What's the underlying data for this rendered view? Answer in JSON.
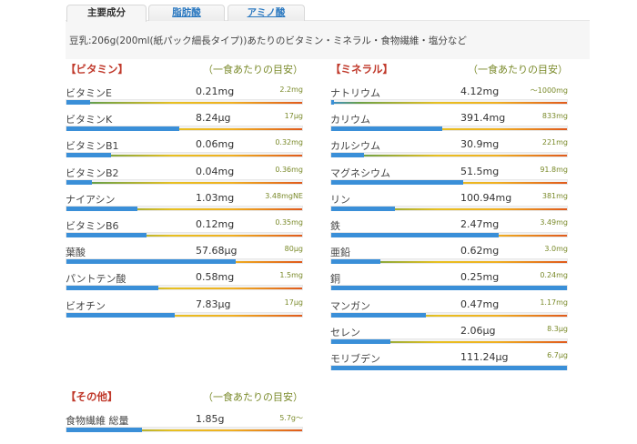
{
  "tabs": [
    {
      "label": "主要成分",
      "active": true
    },
    {
      "label": "脂肪酸",
      "active": false
    },
    {
      "label": "アミノ酸",
      "active": false
    }
  ],
  "subtitle": "豆乳:206g(200ml(紙パック細長タイプ))あたりのビタミン・ミネラル・食物繊維・塩分など",
  "colors": {
    "accent_title": "#c0392b",
    "ref_text": "#7a8a2a",
    "bar_fill": "#3a8fd8",
    "tab_link": "#2a78c0"
  },
  "sections": {
    "vitamins": {
      "title": "【ビタミン】",
      "note": "（一食あたりの目安）",
      "rows": [
        {
          "name": "ビタミンE",
          "value": "0.21mg",
          "ref": "2.2mg",
          "pct": 10
        },
        {
          "name": "ビタミンK",
          "value": "8.24μg",
          "ref": "17μg",
          "pct": 48
        },
        {
          "name": "ビタミンB1",
          "value": "0.06mg",
          "ref": "0.32mg",
          "pct": 19
        },
        {
          "name": "ビタミンB2",
          "value": "0.04mg",
          "ref": "0.36mg",
          "pct": 11
        },
        {
          "name": "ナイアシン",
          "value": "1.03mg",
          "ref": "3.48mgNE",
          "pct": 30
        },
        {
          "name": "ビタミンB6",
          "value": "0.12mg",
          "ref": "0.35mg",
          "pct": 34
        },
        {
          "name": "葉酸",
          "value": "57.68μg",
          "ref": "80μg",
          "pct": 72
        },
        {
          "name": "パントテン酸",
          "value": "0.58mg",
          "ref": "1.5mg",
          "pct": 39
        },
        {
          "name": "ビオチン",
          "value": "7.83μg",
          "ref": "17μg",
          "pct": 46
        }
      ]
    },
    "minerals": {
      "title": "【ミネラル】",
      "note": "（一食あたりの目安）",
      "rows": [
        {
          "name": "ナトリウム",
          "value": "4.12mg",
          "ref": "〜1000mg",
          "pct": 1
        },
        {
          "name": "カリウム",
          "value": "391.4mg",
          "ref": "833mg",
          "pct": 47
        },
        {
          "name": "カルシウム",
          "value": "30.9mg",
          "ref": "221mg",
          "pct": 14
        },
        {
          "name": "マグネシウム",
          "value": "51.5mg",
          "ref": "91.8mg",
          "pct": 56
        },
        {
          "name": "リン",
          "value": "100.94mg",
          "ref": "381mg",
          "pct": 27
        },
        {
          "name": "鉄",
          "value": "2.47mg",
          "ref": "3.49mg",
          "pct": 71
        },
        {
          "name": "亜鉛",
          "value": "0.62mg",
          "ref": "3.0mg",
          "pct": 21
        },
        {
          "name": "銅",
          "value": "0.25mg",
          "ref": "0.24mg",
          "pct": 100
        },
        {
          "name": "マンガン",
          "value": "0.47mg",
          "ref": "1.17mg",
          "pct": 40
        },
        {
          "name": "セレン",
          "value": "2.06μg",
          "ref": "8.3μg",
          "pct": 25
        },
        {
          "name": "モリブデン",
          "value": "111.24μg",
          "ref": "6.7μg",
          "pct": 100
        }
      ]
    },
    "other": {
      "title": "【その他】",
      "note": "（一食あたりの目安）",
      "rows": [
        {
          "name": "食物繊維 総量",
          "value": "1.85g",
          "ref": "5.7g〜",
          "pct": 32
        }
      ]
    }
  }
}
